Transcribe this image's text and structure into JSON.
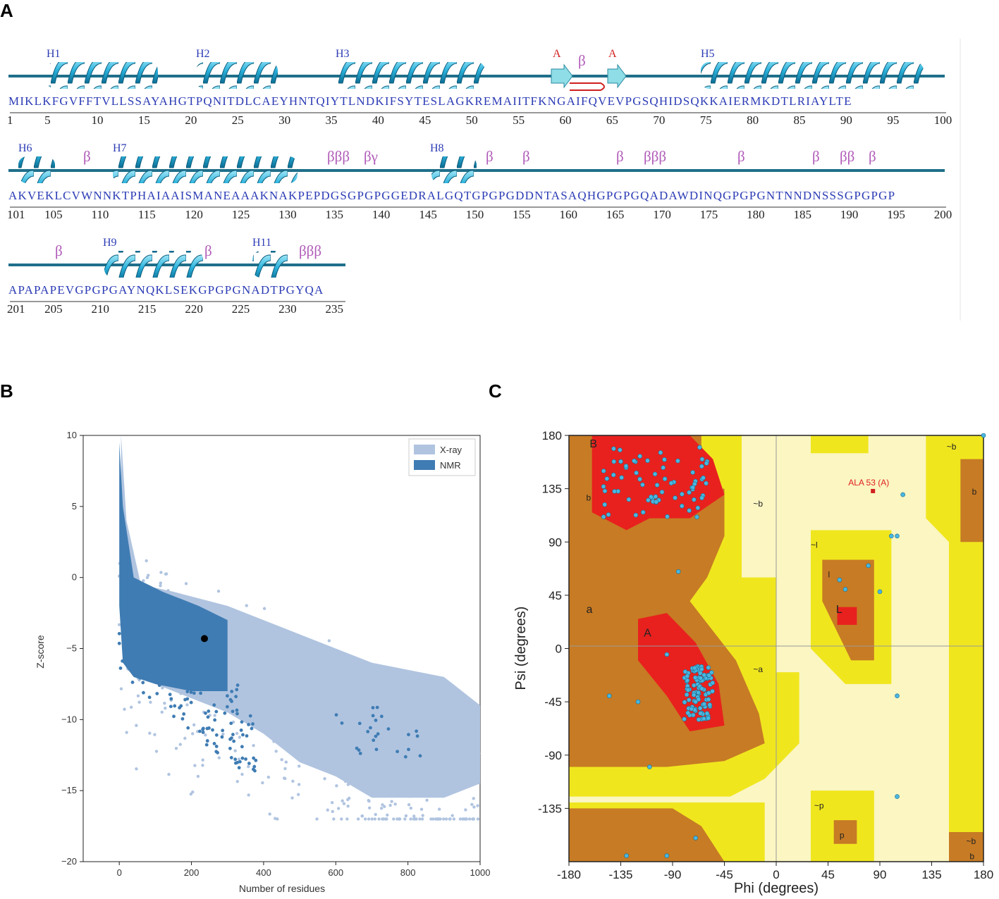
{
  "panels": {
    "a": "A",
    "b": "B",
    "c": "C"
  },
  "panel_a": {
    "rows": [
      {
        "sequence": "MIKLKFGVFFTVLLSSAYAHGTPQNITDLCAEYHNTQIYTLNDKIFSYTESLAGKREMAIITFKNGAIFQVEVPGSQHIDSQKKAIERMKDTLRIAYLTE",
        "ticks": [
          "1",
          "5",
          "10",
          "15",
          "20",
          "25",
          "30",
          "35",
          "40",
          "45",
          "50",
          "55",
          "60",
          "65",
          "70",
          "75",
          "80",
          "85",
          "90",
          "95",
          "100"
        ],
        "helices": [
          "H1",
          "H2",
          "H3",
          "H5"
        ],
        "strand_labels": [
          "A",
          "β",
          "A"
        ],
        "beta_turns": []
      },
      {
        "sequence": "AKVEKLCVWNNKTPHAIAAISMANEAAAKNAKPEPDGSGPGPGGEDRALGQTGPGPGDDNTASAQHGPGPGQADAWDINQGPGPGNTNNDNSSSGPGPGP",
        "ticks": [
          "101",
          "105",
          "110",
          "115",
          "120",
          "125",
          "130",
          "135",
          "140",
          "145",
          "150",
          "155",
          "160",
          "165",
          "170",
          "175",
          "180",
          "185",
          "190",
          "195",
          "200"
        ],
        "helices": [
          "H6",
          "H7",
          "H8"
        ],
        "beta_turns": [
          "β",
          "βββ",
          "βγ",
          "β",
          "β",
          "β",
          "βββ",
          "β",
          "β",
          "ββ",
          "β"
        ]
      },
      {
        "sequence": "APAPAPEVGPGPGAYNQKLSEKGPGPGNADTPGYQA",
        "ticks": [
          "201",
          "205",
          "210",
          "215",
          "220",
          "225",
          "230",
          "235"
        ],
        "helices": [
          "H9",
          "H11"
        ],
        "beta_turns": [
          "β",
          "β",
          "βββ"
        ]
      }
    ]
  },
  "chart_data": [
    {
      "type": "scatter",
      "title": "",
      "xlabel": "Number of residues",
      "ylabel": "Z-score",
      "xlim": [
        -100,
        1000
      ],
      "ylim": [
        -20,
        10
      ],
      "xticks": [
        "0",
        "200",
        "400",
        "600",
        "800",
        "1000"
      ],
      "yticks": [
        "10",
        "5",
        "0",
        "−5",
        "−10",
        "−15",
        "−20"
      ],
      "legend": {
        "position": "top-right",
        "entries": [
          "X-ray",
          "NMR"
        ]
      },
      "series": [
        {
          "name": "X-ray",
          "color": "#b0c4e0",
          "description_points": [
            [
              0,
              10
            ],
            [
              100,
              -2
            ],
            [
              200,
              -4
            ],
            [
              400,
              -7
            ],
            [
              600,
              -9
            ],
            [
              800,
              -11
            ],
            [
              1000,
              -13
            ]
          ]
        },
        {
          "name": "NMR",
          "color": "#3f7cb3",
          "description_points": [
            [
              0,
              8
            ],
            [
              50,
              -3
            ],
            [
              100,
              -5
            ],
            [
              200,
              -6
            ],
            [
              300,
              -7
            ],
            [
              700,
              -9
            ],
            [
              820,
              -12
            ]
          ]
        }
      ],
      "highlight": {
        "x": 236,
        "y": -4.3,
        "color": "#000000"
      }
    },
    {
      "type": "scatter",
      "title": "",
      "xlabel": "Phi (degrees)",
      "ylabel": "Psi (degrees)",
      "xlim": [
        -180,
        180
      ],
      "ylim": [
        -180,
        180
      ],
      "xticks": [
        "-180",
        "-135",
        "-90",
        "-45",
        "0",
        "45",
        "90",
        "135",
        "180"
      ],
      "yticks": [
        "180",
        "135",
        "90",
        "45",
        "0",
        "-45",
        "-90",
        "-135"
      ],
      "region_labels": [
        "B",
        "b",
        "a",
        "A",
        "~b",
        "~a",
        "~l",
        "l",
        "L",
        "~p",
        "p",
        "~b",
        "b",
        "~b",
        "b"
      ],
      "annotation": {
        "label": "ALA 53 (A)",
        "phi": 84,
        "psi": 133,
        "color": "#e02020"
      },
      "colors": {
        "core": "#e8211e",
        "allowed": "#c77b24",
        "generous": "#f0e61e",
        "disallowed": "#fbf6c2",
        "point": "#4ab7e0"
      }
    }
  ]
}
